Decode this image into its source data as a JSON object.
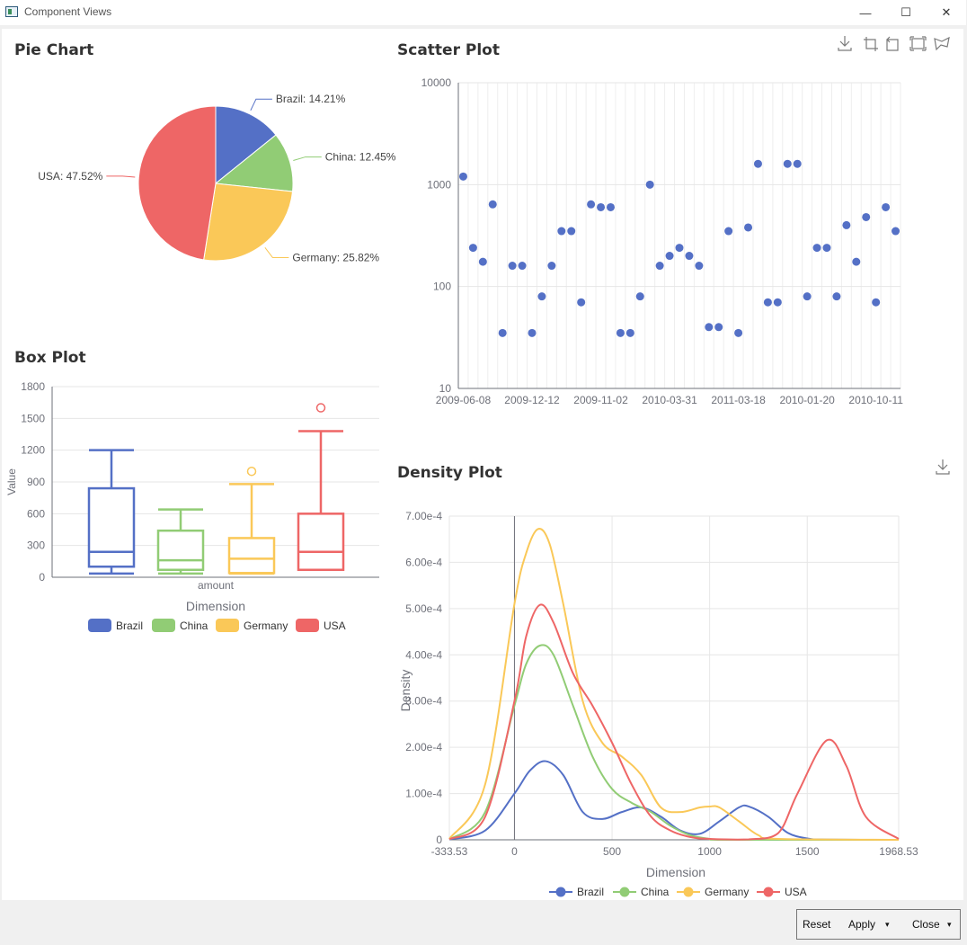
{
  "window": {
    "title": "Component Views",
    "minimize_glyph": "—",
    "maximize_glyph": "☐",
    "close_glyph": "✕"
  },
  "icons": [
    "app-icon",
    "download-icon",
    "crop-icon",
    "rotate-icon",
    "zoom-select-icon",
    "lasso-icon"
  ],
  "colors": {
    "brazil": "#5470c6",
    "china": "#91cc75",
    "germany": "#fac858",
    "usa": "#ee6666",
    "scatter": "#5470c6",
    "grid": "#e6e6e6",
    "axis": "#6e7079",
    "text": "#333333"
  },
  "pie": {
    "heading": "Pie Chart",
    "chart_data": {
      "type": "pie",
      "slices": [
        {
          "label": "Brazil: 14.21%",
          "value": 14.21,
          "color": "#5470c6"
        },
        {
          "label": "China: 12.45%",
          "value": 12.45,
          "color": "#91cc75"
        },
        {
          "label": "Germany: 25.82%",
          "value": 25.82,
          "color": "#fac858"
        },
        {
          "label": "USA: 47.52%",
          "value": 47.52,
          "color": "#ee6666"
        }
      ]
    }
  },
  "scatter": {
    "heading": "Scatter Plot",
    "chart_data": {
      "type": "scatter",
      "y_scale": "log",
      "ylim": [
        10,
        10000
      ],
      "y_ticks": [
        "10",
        "100",
        "1000",
        "10000"
      ],
      "x_tick_labels": [
        "2009-06-08",
        "2009-12-12",
        "2009-11-02",
        "2010-03-31",
        "2011-03-18",
        "2010-01-20",
        "2010-10-11"
      ],
      "values": [
        1200,
        240,
        175,
        640,
        35,
        160,
        160,
        35,
        80,
        160,
        350,
        350,
        70,
        640,
        600,
        600,
        35,
        35,
        80,
        1000,
        160,
        200,
        240,
        200,
        160,
        40,
        40,
        350,
        35,
        380,
        1600,
        70,
        70,
        1600,
        1600,
        80,
        240,
        240,
        80,
        400,
        175,
        480,
        70,
        600,
        350
      ]
    }
  },
  "box": {
    "heading": "Box Plot",
    "chart_data": {
      "type": "box",
      "ylim": [
        0,
        1800
      ],
      "y_ticks": [
        "0",
        "300",
        "600",
        "900",
        "1200",
        "1500",
        "1800"
      ],
      "ylabel": "Value",
      "category": "amount",
      "xlabel": "Dimension",
      "series": [
        {
          "name": "Brazil",
          "color": "#5470c6",
          "min": 35,
          "q1": 100,
          "median": 240,
          "q3": 840,
          "max": 1200,
          "outliers": []
        },
        {
          "name": "China",
          "color": "#91cc75",
          "min": 35,
          "q1": 70,
          "median": 160,
          "q3": 440,
          "max": 640,
          "outliers": []
        },
        {
          "name": "Germany",
          "color": "#fac858",
          "min": 35,
          "q1": 40,
          "median": 175,
          "q3": 370,
          "max": 880,
          "outliers": [
            1000
          ]
        },
        {
          "name": "USA",
          "color": "#ee6666",
          "min": 70,
          "q1": 70,
          "median": 240,
          "q3": 600,
          "max": 1380,
          "outliers": [
            1600
          ]
        }
      ]
    }
  },
  "density": {
    "heading": "Density Plot",
    "chart_data": {
      "type": "line",
      "xlim": [
        -333.53,
        1968.53
      ],
      "x_ticks": [
        "-333.53",
        "0",
        "500",
        "1000",
        "1500",
        "1968.53"
      ],
      "ylim": [
        0,
        0.0007
      ],
      "y_ticks": [
        "0",
        "1.00e-4",
        "2.00e-4",
        "3.00e-4",
        "4.00e-4",
        "5.00e-4",
        "6.00e-4",
        "7.00e-4"
      ],
      "xlabel": "Dimension",
      "ylabel": "Density",
      "series": [
        {
          "name": "Brazil",
          "color": "#5470c6",
          "points": [
            [
              -333.53,
              1e-06
            ],
            [
              -150,
              2e-05
            ],
            [
              0,
              0.0001
            ],
            [
              80,
              0.00015
            ],
            [
              160,
              0.00017
            ],
            [
              250,
              0.00014
            ],
            [
              350,
              6e-05
            ],
            [
              450,
              4.5e-05
            ],
            [
              550,
              6e-05
            ],
            [
              650,
              7e-05
            ],
            [
              750,
              5e-05
            ],
            [
              850,
              2e-05
            ],
            [
              950,
              1.3e-05
            ],
            [
              1050,
              4e-05
            ],
            [
              1150,
              7e-05
            ],
            [
              1200,
              7.2e-05
            ],
            [
              1300,
              5e-05
            ],
            [
              1400,
              1.5e-05
            ],
            [
              1500,
              3e-06
            ],
            [
              1600,
              5e-07
            ],
            [
              1968.53,
              0
            ]
          ]
        },
        {
          "name": "China",
          "color": "#91cc75",
          "points": [
            [
              -333.53,
              1e-06
            ],
            [
              -150,
              6e-05
            ],
            [
              0,
              0.00029
            ],
            [
              60,
              0.00038
            ],
            [
              130,
              0.00042
            ],
            [
              200,
              0.0004
            ],
            [
              300,
              0.00029
            ],
            [
              400,
              0.00018
            ],
            [
              500,
              0.00011
            ],
            [
              600,
              8e-05
            ],
            [
              700,
              6e-05
            ],
            [
              800,
              3e-05
            ],
            [
              900,
              1e-05
            ],
            [
              1000,
              2e-06
            ],
            [
              1100,
              0
            ],
            [
              1968.53,
              0
            ]
          ]
        },
        {
          "name": "Germany",
          "color": "#fac858",
          "points": [
            [
              -333.53,
              2e-06
            ],
            [
              -150,
              0.00012
            ],
            [
              0,
              0.00051
            ],
            [
              60,
              0.00062
            ],
            [
              120,
              0.000672
            ],
            [
              180,
              0.00064
            ],
            [
              250,
              0.00051
            ],
            [
              350,
              0.0003
            ],
            [
              450,
              0.00021
            ],
            [
              550,
              0.00018
            ],
            [
              650,
              0.00014
            ],
            [
              750,
              7e-05
            ],
            [
              850,
              6e-05
            ],
            [
              950,
              7e-05
            ],
            [
              1000,
              7.2e-05
            ],
            [
              1050,
              7e-05
            ],
            [
              1150,
              4e-05
            ],
            [
              1250,
              1e-05
            ],
            [
              1350,
              2e-06
            ],
            [
              1968.53,
              0
            ]
          ]
        },
        {
          "name": "USA",
          "color": "#ee6666",
          "points": [
            [
              -333.53,
              1e-06
            ],
            [
              -150,
              5e-05
            ],
            [
              0,
              0.0003
            ],
            [
              60,
              0.00044
            ],
            [
              130,
              0.000508
            ],
            [
              200,
              0.00047
            ],
            [
              300,
              0.00036
            ],
            [
              400,
              0.00029
            ],
            [
              500,
              0.00021
            ],
            [
              600,
              0.00012
            ],
            [
              700,
              5e-05
            ],
            [
              800,
              2e-05
            ],
            [
              900,
              6e-06
            ],
            [
              1000,
              2e-06
            ],
            [
              1200,
              1e-06
            ],
            [
              1350,
              1.4e-05
            ],
            [
              1450,
              0.0001
            ],
            [
              1600,
              0.000215
            ],
            [
              1700,
              0.00016
            ],
            [
              1800,
              5e-05
            ],
            [
              1968.53,
              2e-06
            ]
          ]
        }
      ]
    }
  },
  "buttons": {
    "reset": "Reset",
    "apply": "Apply",
    "close": "Close",
    "caret": "▾"
  }
}
